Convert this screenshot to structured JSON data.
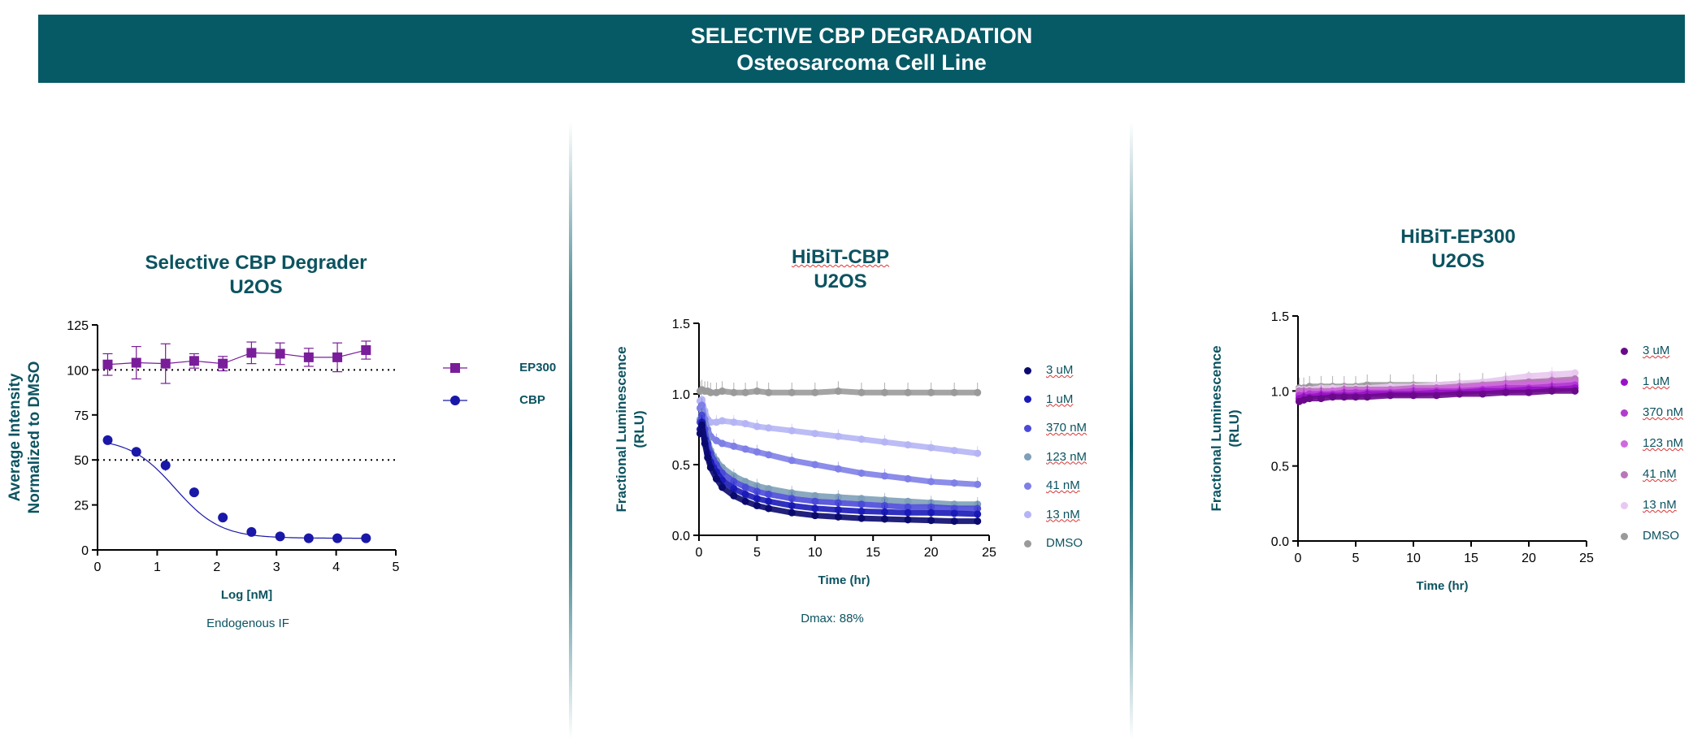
{
  "header": {
    "line1": "SELECTIVE CBP DEGRADATION",
    "line2": "Osteosarcoma Cell Line",
    "background": "#055a66"
  },
  "chart_data": [
    {
      "type": "scatter",
      "title_line1": "Selective CBP Degrader",
      "title_line2": "U2OS",
      "xlabel": "Log [nM]",
      "ylabel_line1": "Average Intensity",
      "ylabel_line2": "Normalized to DMSO",
      "note": "Endogenous IF",
      "xlim": [
        0,
        5
      ],
      "ylim": [
        0,
        125
      ],
      "xticks": [
        "0",
        "1",
        "2",
        "3",
        "4",
        "5"
      ],
      "yticks": [
        "0",
        "25",
        "50",
        "75",
        "100",
        "125"
      ],
      "reference_lines": [
        100,
        50
      ],
      "series": [
        {
          "name": "EP300",
          "marker": "square",
          "color": "#7a1d9a",
          "x": [
            0.17,
            0.65,
            1.14,
            1.62,
            2.1,
            2.58,
            3.06,
            3.54,
            4.02,
            4.5
          ],
          "y": [
            103,
            104,
            103.5,
            105,
            103.5,
            109.5,
            109,
            107,
            107,
            111
          ],
          "err": [
            6,
            9,
            11,
            4,
            4,
            6,
            6,
            5,
            8,
            5
          ]
        },
        {
          "name": "CBP",
          "marker": "circle",
          "color": "#1a18a8",
          "x": [
            0.17,
            0.65,
            1.14,
            1.62,
            2.1,
            2.58,
            3.06,
            3.54,
            4.02,
            4.5
          ],
          "y": [
            61,
            54.5,
            47,
            32,
            18,
            10,
            7.5,
            6.5,
            6.5,
            6.5
          ],
          "err": [
            1.5,
            1.5,
            3,
            2,
            1.5,
            1,
            1,
            1,
            1,
            1
          ]
        }
      ]
    },
    {
      "type": "line",
      "title_line1": "HiBiT-CBP",
      "title_line2": "U2OS",
      "xlabel": "Time (hr)",
      "ylabel_line1": "Fractional Luminescence",
      "ylabel_line2": "(RLU)",
      "note": "Dmax: 88%",
      "xlim": [
        0,
        25
      ],
      "ylim": [
        0,
        1.5
      ],
      "xticks": [
        "0",
        "5",
        "10",
        "15",
        "20",
        "25"
      ],
      "yticks": [
        "0.0",
        "0.5",
        "1.0",
        "1.5"
      ],
      "x": [
        0.1,
        0.25,
        0.5,
        0.75,
        1,
        1.5,
        2,
        3,
        4,
        5,
        6,
        8,
        10,
        12,
        14,
        16,
        18,
        20,
        22,
        24
      ],
      "series": [
        {
          "name": "3 uM",
          "color": "#0a0a6e",
          "values": [
            0.72,
            0.78,
            0.65,
            0.55,
            0.48,
            0.4,
            0.34,
            0.28,
            0.24,
            0.21,
            0.19,
            0.16,
            0.14,
            0.13,
            0.12,
            0.115,
            0.11,
            0.105,
            0.1,
            0.1
          ]
        },
        {
          "name": "1 uM",
          "color": "#1a1ab8",
          "values": [
            0.75,
            0.8,
            0.68,
            0.58,
            0.52,
            0.45,
            0.39,
            0.33,
            0.29,
            0.26,
            0.24,
            0.21,
            0.19,
            0.18,
            0.17,
            0.165,
            0.16,
            0.16,
            0.155,
            0.15
          ]
        },
        {
          "name": "370 nM",
          "color": "#4a4ad8",
          "values": [
            0.8,
            0.85,
            0.75,
            0.65,
            0.58,
            0.5,
            0.44,
            0.38,
            0.34,
            0.31,
            0.29,
            0.26,
            0.24,
            0.23,
            0.22,
            0.21,
            0.2,
            0.2,
            0.19,
            0.19
          ]
        },
        {
          "name": "123 nM",
          "color": "#7ea0b8",
          "values": [
            0.82,
            0.86,
            0.78,
            0.68,
            0.6,
            0.53,
            0.48,
            0.42,
            0.38,
            0.35,
            0.33,
            0.3,
            0.28,
            0.27,
            0.26,
            0.25,
            0.24,
            0.23,
            0.22,
            0.22
          ]
        },
        {
          "name": "41 nM",
          "color": "#7f7fe8",
          "values": [
            0.9,
            0.92,
            0.82,
            0.75,
            0.7,
            0.67,
            0.65,
            0.63,
            0.61,
            0.59,
            0.57,
            0.53,
            0.5,
            0.47,
            0.44,
            0.42,
            0.4,
            0.38,
            0.37,
            0.36
          ]
        },
        {
          "name": "13 nM",
          "color": "#b5b5f5",
          "values": [
            0.95,
            0.96,
            0.88,
            0.82,
            0.8,
            0.8,
            0.81,
            0.8,
            0.79,
            0.77,
            0.76,
            0.74,
            0.72,
            0.7,
            0.68,
            0.66,
            0.64,
            0.62,
            0.6,
            0.58
          ]
        },
        {
          "name": "DMSO",
          "color": "#9a9a9a",
          "values": [
            1.02,
            1.03,
            1.02,
            1.02,
            1.01,
            1.01,
            1.02,
            1.01,
            1.01,
            1.02,
            1.01,
            1.01,
            1.01,
            1.02,
            1.01,
            1.01,
            1.01,
            1.01,
            1.01,
            1.01
          ]
        }
      ]
    },
    {
      "type": "line",
      "title_line1": "HiBiT-EP300",
      "title_line2": "U2OS",
      "xlabel": "Time (hr)",
      "ylabel_line1": "Fractional Luminescence",
      "ylabel_line2": "(RLU)",
      "xlim": [
        0,
        25
      ],
      "ylim": [
        0,
        1.5
      ],
      "xticks": [
        "0",
        "5",
        "10",
        "15",
        "20",
        "25"
      ],
      "yticks": [
        "0.0",
        "0.5",
        "1.0",
        "1.5"
      ],
      "x": [
        0.1,
        0.5,
        1,
        2,
        3,
        4,
        5,
        6,
        8,
        10,
        12,
        14,
        16,
        18,
        20,
        22,
        24
      ],
      "series": [
        {
          "name": "3 uM",
          "color": "#6a0a8a",
          "values": [
            0.93,
            0.94,
            0.95,
            0.95,
            0.96,
            0.96,
            0.96,
            0.96,
            0.97,
            0.97,
            0.97,
            0.98,
            0.98,
            0.99,
            0.99,
            1.0,
            1.0
          ]
        },
        {
          "name": "1 uM",
          "color": "#9a12c8",
          "values": [
            0.95,
            0.96,
            0.96,
            0.97,
            0.97,
            0.97,
            0.97,
            0.98,
            0.98,
            0.98,
            0.99,
            0.99,
            1.0,
            1.0,
            1.01,
            1.01,
            1.02
          ]
        },
        {
          "name": "370 nM",
          "color": "#b23ad0",
          "values": [
            0.97,
            0.97,
            0.98,
            0.98,
            0.98,
            0.99,
            0.99,
            0.99,
            0.99,
            1.0,
            1.0,
            1.0,
            1.01,
            1.02,
            1.02,
            1.03,
            1.04
          ]
        },
        {
          "name": "123 nM",
          "color": "#d068e0",
          "values": [
            0.98,
            0.99,
            0.99,
            0.99,
            1.0,
            1.0,
            1.0,
            1.0,
            1.0,
            1.01,
            1.01,
            1.02,
            1.03,
            1.04,
            1.04,
            1.05,
            1.06
          ]
        },
        {
          "name": "41 nM",
          "color": "#b878b8",
          "values": [
            1.0,
            1.0,
            1.0,
            1.0,
            1.0,
            1.01,
            1.01,
            1.01,
            1.01,
            1.02,
            1.02,
            1.03,
            1.04,
            1.05,
            1.06,
            1.07,
            1.08
          ]
        },
        {
          "name": "13 nM",
          "color": "#e8c8f0",
          "values": [
            1.01,
            1.01,
            1.01,
            1.02,
            1.02,
            1.02,
            1.02,
            1.02,
            1.03,
            1.03,
            1.04,
            1.05,
            1.06,
            1.08,
            1.1,
            1.11,
            1.12
          ]
        },
        {
          "name": "DMSO",
          "color": "#9a9a9a",
          "values": [
            1.02,
            1.02,
            1.03,
            1.03,
            1.03,
            1.03,
            1.03,
            1.04,
            1.04,
            1.04,
            1.04,
            1.05,
            1.05,
            1.05,
            1.06,
            1.06,
            1.07
          ]
        }
      ]
    }
  ]
}
